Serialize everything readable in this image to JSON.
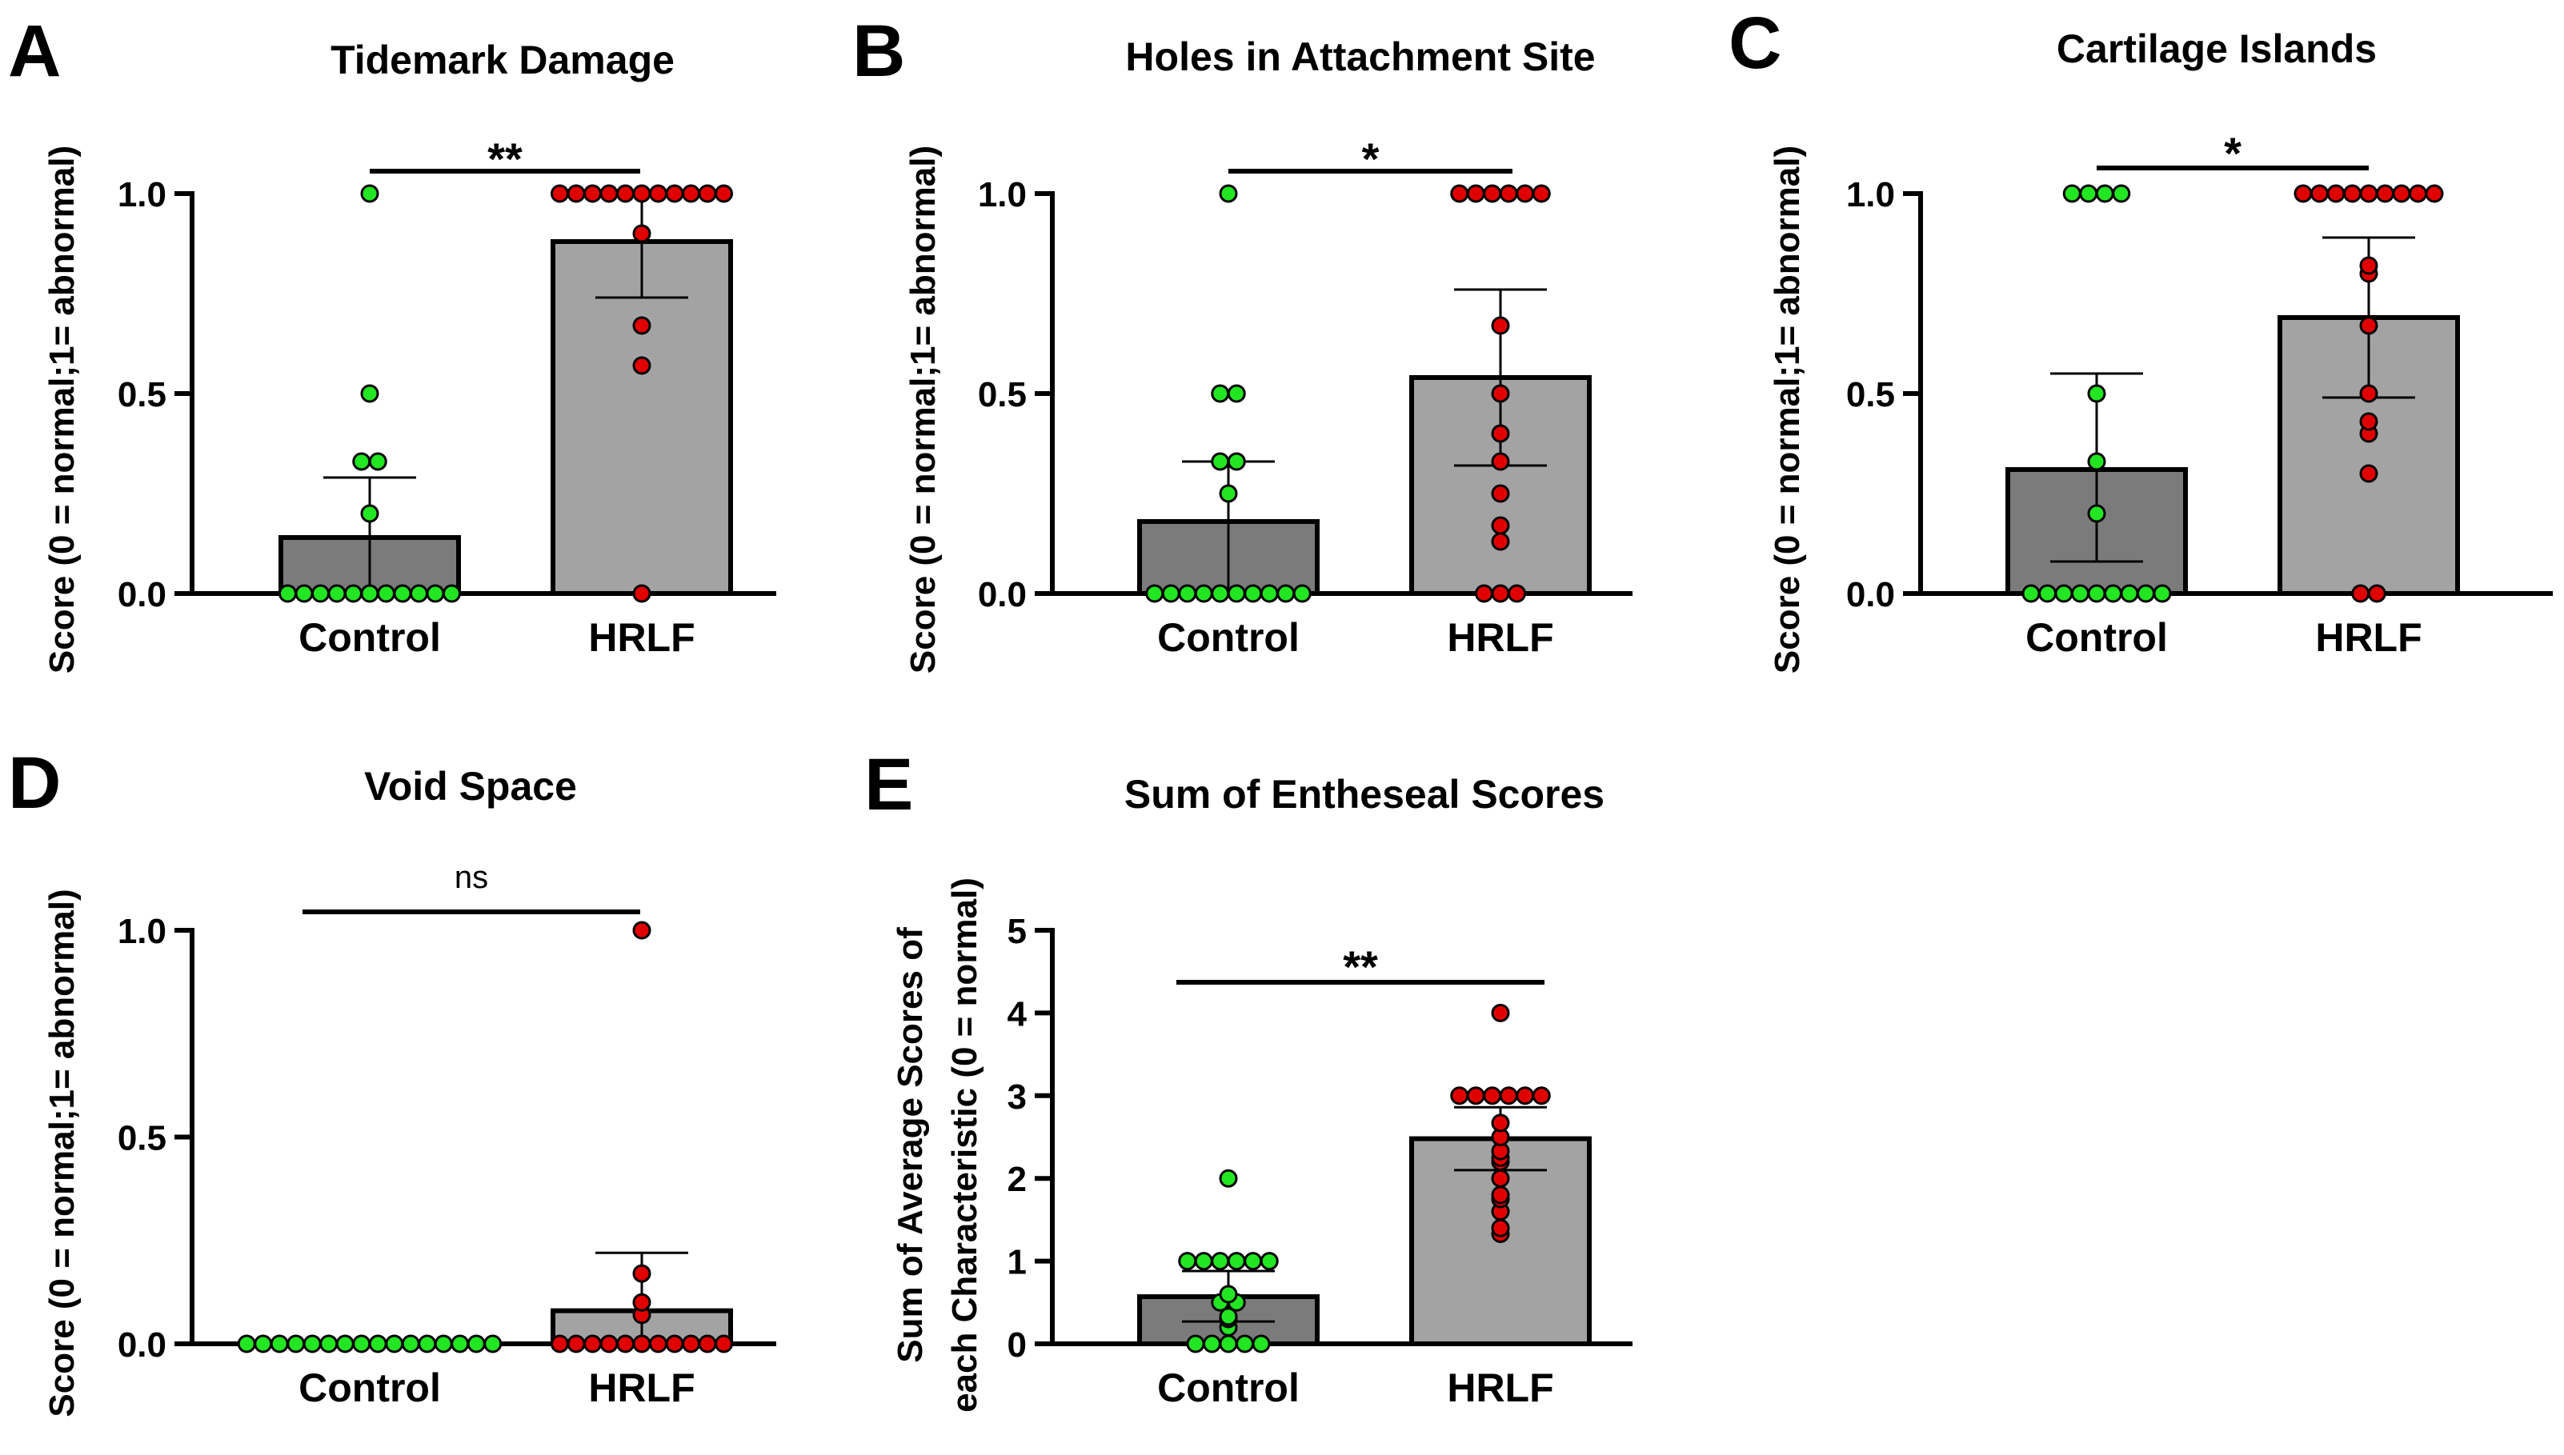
{
  "colors": {
    "control_fill": "#7b7b7b",
    "hrlf_fill": "#a3a3a3",
    "control_dot": "#22e622",
    "hrlf_dot": "#e00000",
    "axis": "#000000"
  },
  "chart_data": [
    {
      "panel": "A",
      "type": "bar",
      "title": "Tidemark Damage",
      "ylabel": [
        "Score (0 = normal;1= abnormal)"
      ],
      "categories": [
        "Control",
        "HRLF"
      ],
      "ylim": [
        0,
        1
      ],
      "yticks": [
        "0.0",
        "0.5",
        "1.0"
      ],
      "yticks_values": [
        0,
        0.5,
        1
      ],
      "significance": "**",
      "means": [
        0.14,
        0.88
      ],
      "errors": [
        [
          0,
          0.29
        ],
        [
          0.74,
          1.0
        ]
      ],
      "points": [
        [
          0,
          0,
          0,
          0,
          0,
          0,
          0,
          0,
          0,
          0,
          0,
          0.2,
          0.33,
          0.33,
          0.5,
          1
        ],
        [
          0,
          0.57,
          0.67,
          0.9,
          1,
          1,
          1,
          1,
          1,
          1,
          1,
          1,
          1,
          1,
          1
        ]
      ]
    },
    {
      "panel": "B",
      "type": "bar",
      "title": "Holes in Attachment Site",
      "ylabel": [
        "Score (0 = normal;1= abnormal)"
      ],
      "categories": [
        "Control",
        "HRLF"
      ],
      "ylim": [
        0,
        1
      ],
      "yticks": [
        "0.0",
        "0.5",
        "1.0"
      ],
      "yticks_values": [
        0,
        0.5,
        1
      ],
      "significance": "*",
      "means": [
        0.18,
        0.54
      ],
      "errors": [
        [
          0,
          0.33
        ],
        [
          0.32,
          0.76
        ]
      ],
      "points": [
        [
          0,
          0,
          0,
          0,
          0,
          0,
          0,
          0,
          0,
          0,
          0.25,
          0.33,
          0.33,
          0.5,
          0.5,
          1
        ],
        [
          0,
          0,
          0,
          0.13,
          0.17,
          0.25,
          0.33,
          0.4,
          0.5,
          0.67,
          1,
          1,
          1,
          1,
          1,
          1
        ]
      ]
    },
    {
      "panel": "C",
      "type": "bar",
      "title": "Cartilage Islands",
      "ylabel": [
        "Score (0 = normal;1= abnormal)"
      ],
      "categories": [
        "Control",
        "HRLF"
      ],
      "ylim": [
        0,
        1
      ],
      "yticks": [
        "0.0",
        "0.5",
        "1.0"
      ],
      "yticks_values": [
        0,
        0.5,
        1
      ],
      "significance": "*",
      "means": [
        0.31,
        0.69
      ],
      "errors": [
        [
          0.08,
          0.55
        ],
        [
          0.49,
          0.89
        ]
      ],
      "points": [
        [
          0,
          0,
          0,
          0,
          0,
          0,
          0,
          0,
          0,
          0.2,
          0.33,
          0.5,
          1,
          1,
          1,
          1
        ],
        [
          0,
          0,
          0.3,
          0.4,
          0.43,
          0.5,
          0.67,
          0.8,
          0.82,
          1,
          1,
          1,
          1,
          1,
          1,
          1,
          1,
          1
        ]
      ]
    },
    {
      "panel": "D",
      "type": "bar",
      "title": "Void Space",
      "ylabel": [
        "Score (0 = normal;1= abnormal)"
      ],
      "categories": [
        "Control",
        "HRLF"
      ],
      "ylim": [
        0,
        1
      ],
      "yticks": [
        "0.0",
        "0.5",
        "1.0"
      ],
      "yticks_values": [
        0,
        0.5,
        1
      ],
      "significance": "ns",
      "means": [
        0,
        0.08
      ],
      "errors": [
        [
          0,
          0
        ],
        [
          0,
          0.22
        ]
      ],
      "points": [
        [
          0,
          0,
          0,
          0,
          0,
          0,
          0,
          0,
          0,
          0,
          0,
          0,
          0,
          0,
          0,
          0
        ],
        [
          0,
          0,
          0,
          0,
          0,
          0,
          0,
          0,
          0,
          0,
          0,
          0.07,
          0.1,
          0.17,
          1
        ]
      ]
    },
    {
      "panel": "E",
      "type": "bar",
      "title": "Sum of Entheseal Scores",
      "ylabel": [
        "Sum of Average Scores of",
        "each Characteristic (0 = normal)"
      ],
      "categories": [
        "Control",
        "HRLF"
      ],
      "ylim": [
        0,
        5
      ],
      "yticks": [
        "0",
        "1",
        "2",
        "3",
        "4",
        "5"
      ],
      "yticks_values": [
        0,
        1,
        2,
        3,
        4,
        5
      ],
      "significance": "**",
      "means": [
        0.57,
        2.48
      ],
      "errors": [
        [
          0.27,
          0.88
        ],
        [
          2.1,
          2.86
        ]
      ],
      "points": [
        [
          0,
          0,
          0,
          0,
          0,
          0.2,
          0.3,
          0.33,
          0.5,
          0.5,
          0.6,
          1,
          1,
          1,
          1,
          1,
          1,
          2
        ],
        [
          1.33,
          1.4,
          1.6,
          1.75,
          1.8,
          2,
          2.2,
          2.25,
          2.33,
          2.5,
          2.67,
          3,
          3,
          3,
          3,
          3,
          3,
          4
        ]
      ]
    }
  ]
}
